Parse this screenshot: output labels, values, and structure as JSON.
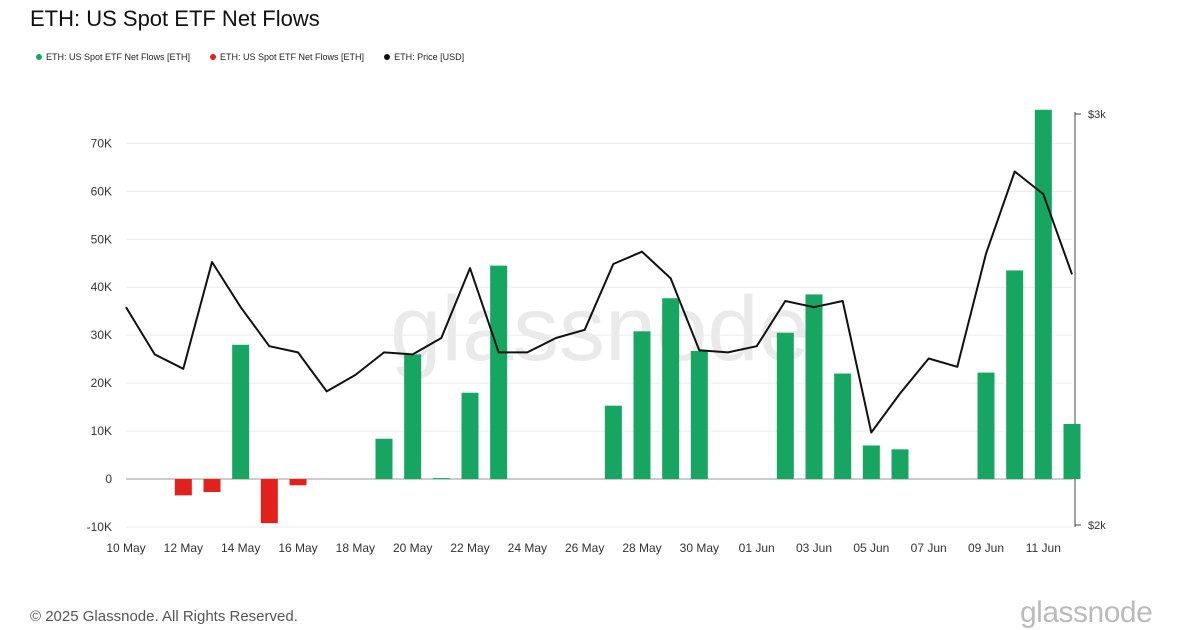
{
  "title": "ETH: US Spot ETF Net Flows",
  "legend": [
    {
      "label": "ETH: US Spot ETF Net Flows [ETH]",
      "color": "#17a661"
    },
    {
      "label": "ETH: US Spot ETF Net Flows [ETH]",
      "color": "#e3211c"
    },
    {
      "label": "ETH: Price [USD]",
      "color": "#111111"
    }
  ],
  "footer": "© 2025 Glassnode. All Rights Reserved.",
  "brand": "glassnode",
  "watermark": "glassnode",
  "chart_data": {
    "type": "bar",
    "title": "ETH: US Spot ETF Net Flows",
    "colors": {
      "positive": "#17a661",
      "negative": "#e3211c",
      "price": "#111111"
    },
    "x": [
      "10 May",
      "11 May",
      "12 May",
      "13 May",
      "14 May",
      "15 May",
      "16 May",
      "17 May",
      "18 May",
      "19 May",
      "20 May",
      "21 May",
      "22 May",
      "23 May",
      "24 May",
      "25 May",
      "26 May",
      "27 May",
      "28 May",
      "29 May",
      "30 May",
      "31 May",
      "01 Jun",
      "02 Jun",
      "03 Jun",
      "04 Jun",
      "05 Jun",
      "06 Jun",
      "07 Jun",
      "08 Jun",
      "09 Jun",
      "10 Jun",
      "11 Jun",
      "12 Jun"
    ],
    "series": [
      {
        "name": "ETH: US Spot ETF Net Flows [ETH]",
        "axis": "left",
        "values": [
          0,
          0,
          -3400,
          -2700,
          28000,
          -9200,
          -1300,
          0,
          0,
          8400,
          26000,
          200,
          18000,
          44500,
          0,
          0,
          0,
          15300,
          30800,
          37700,
          26700,
          0,
          0,
          30500,
          38500,
          22000,
          7000,
          6200,
          0,
          0,
          22200,
          43500,
          77000,
          11500
        ]
      },
      {
        "name": "ETH: Price [USD]",
        "axis": "right",
        "type": "line",
        "values": [
          2530,
          2415,
          2380,
          2640,
          2530,
          2435,
          2420,
          2325,
          2365,
          2420,
          2415,
          2455,
          2625,
          2420,
          2420,
          2455,
          2475,
          2635,
          2665,
          2600,
          2425,
          2420,
          2435,
          2545,
          2530,
          2545,
          2225,
          2320,
          2405,
          2385,
          2660,
          2860,
          2805,
          2610
        ]
      }
    ],
    "x_ticks": [
      "10 May",
      "12 May",
      "14 May",
      "16 May",
      "18 May",
      "20 May",
      "22 May",
      "24 May",
      "26 May",
      "28 May",
      "30 May",
      "01 Jun",
      "03 Jun",
      "05 Jun",
      "07 Jun",
      "09 Jun",
      "11 Jun"
    ],
    "y_ticks": [
      "-10K",
      "0",
      "10K",
      "20K",
      "30K",
      "40K",
      "50K",
      "60K",
      "70K"
    ],
    "y_tick_values": [
      -10000,
      0,
      10000,
      20000,
      30000,
      40000,
      50000,
      60000,
      70000
    ],
    "y2_ticks": [
      "$2k",
      "$3k"
    ],
    "y2_tick_values": [
      2000,
      3000
    ],
    "ylim": [
      -10000,
      78000
    ],
    "y2lim": [
      2000,
      3000
    ],
    "grid": true
  }
}
